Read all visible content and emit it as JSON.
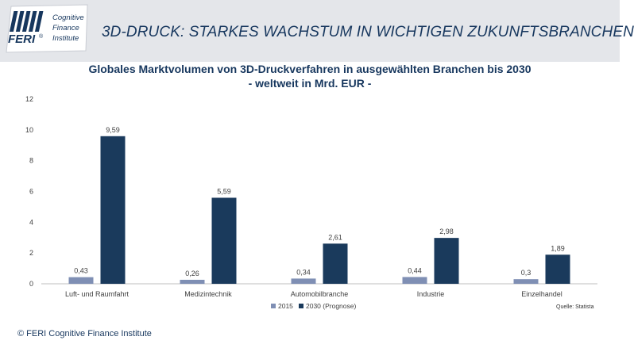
{
  "header": {
    "headline": "3D-DRUCK: STARKES WACHSTUM IN WICHTIGEN ZUKUNFTSBRANCHEN",
    "logo_text": {
      "brand": "FERI",
      "registered": "®",
      "line1": "Cognitive",
      "line2": "Finance",
      "line3": "Institute"
    },
    "colors": {
      "band": "#e4e6ea",
      "title": "#17375e"
    }
  },
  "chart_data": {
    "type": "bar",
    "title": "Globales Marktvolumen von 3D-Druckverfahren in ausgewählten Branchen bis 2030",
    "subtitle": "- weltweit in Mrd. EUR -",
    "categories": [
      "Luft- und Raumfahrt",
      "Medizintechnik",
      "Automobilbranche",
      "Industrie",
      "Einzelhandel"
    ],
    "series": [
      {
        "name": "2015",
        "values": [
          0.43,
          0.26,
          0.34,
          0.44,
          0.3
        ],
        "labels": [
          "0,43",
          "0,26",
          "0,34",
          "0,44",
          "0,3"
        ],
        "color": "#7f8fb4"
      },
      {
        "name": "2030 (Prognose)",
        "values": [
          9.59,
          5.59,
          2.61,
          2.98,
          1.89
        ],
        "labels": [
          "9,59",
          "5,59",
          "2,61",
          "2,98",
          "1,89"
        ],
        "color": "#1a3a5c"
      }
    ],
    "ylim": [
      0,
      12
    ],
    "yticks": [
      0,
      2,
      4,
      6,
      8,
      10,
      12
    ],
    "grid": false,
    "legend": "bottom"
  },
  "source": "Quelle: Statista",
  "footer": {
    "copyright": "© FERI Cognitive Finance Institute"
  }
}
